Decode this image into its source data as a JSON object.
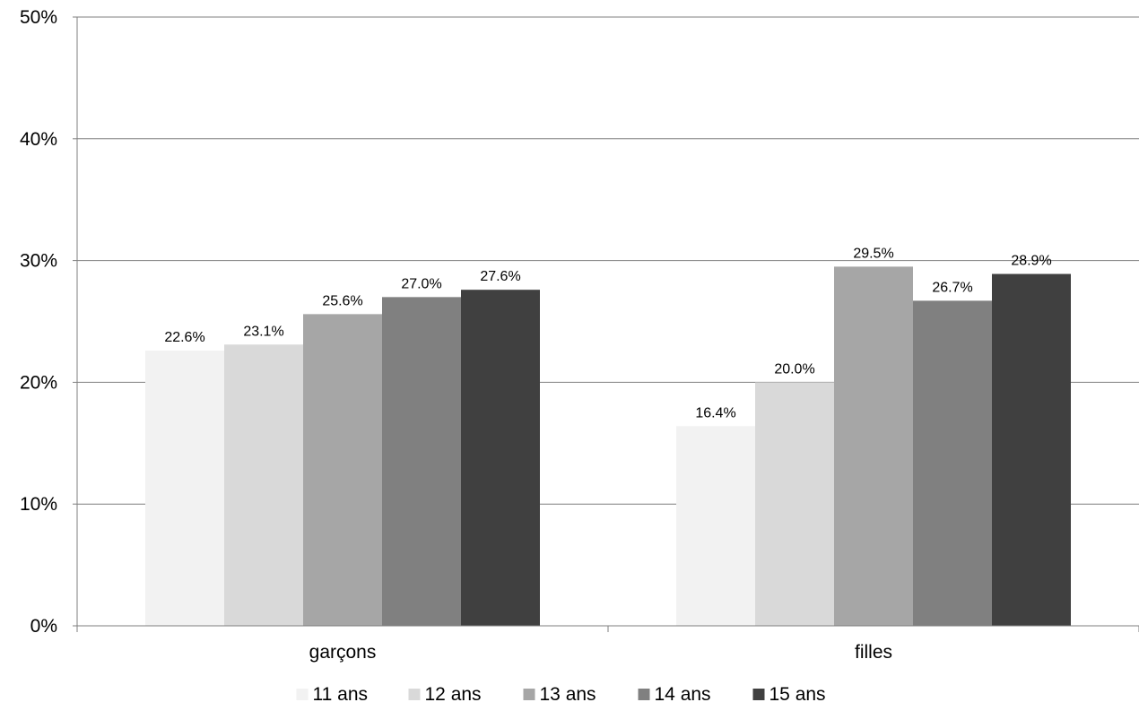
{
  "chart_data": {
    "type": "bar",
    "title": "",
    "xlabel": "",
    "ylabel": "",
    "categories": [
      "garçons",
      "filles"
    ],
    "series": [
      {
        "name": "11 ans",
        "values": [
          22.6,
          16.4
        ],
        "labels": [
          "22.6%",
          "16.4%"
        ],
        "color": "#f2f2f2"
      },
      {
        "name": "12 ans",
        "values": [
          23.1,
          20.0
        ],
        "labels": [
          "23.1%",
          "20.0%"
        ],
        "color": "#d9d9d9"
      },
      {
        "name": "13 ans",
        "values": [
          25.6,
          29.5
        ],
        "labels": [
          "25.6%",
          "29.5%"
        ],
        "color": "#a6a6a6"
      },
      {
        "name": "14 ans",
        "values": [
          27.0,
          26.7
        ],
        "labels": [
          "27.0%",
          "26.7%"
        ],
        "color": "#808080"
      },
      {
        "name": "15 ans",
        "values": [
          27.6,
          28.9
        ],
        "labels": [
          "27.6%",
          "28.9%"
        ],
        "color": "#404040"
      }
    ],
    "ylim": [
      0,
      50
    ],
    "yticks": [
      0,
      10,
      20,
      30,
      40,
      50
    ],
    "ytick_labels": [
      "0%",
      "10%",
      "20%",
      "30%",
      "40%",
      "50%"
    ],
    "grid": true,
    "legend_position": "bottom"
  }
}
